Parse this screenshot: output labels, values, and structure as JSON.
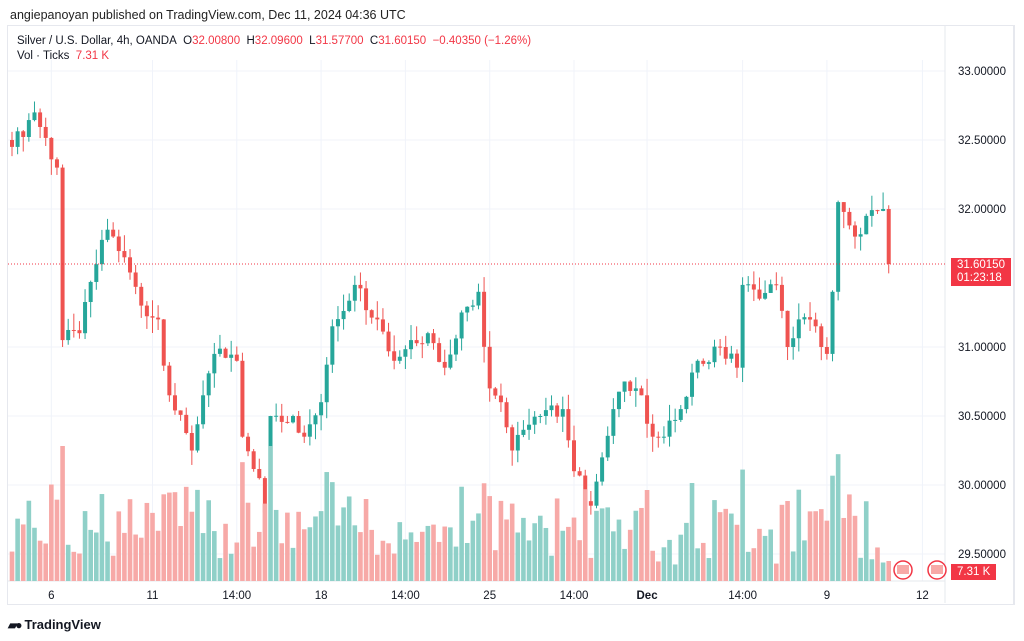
{
  "publisher": "angiepanoyan published on TradingView.com, Dec 11, 2024 04:36 UTC",
  "legend": {
    "symbol": "Silver / U.S. Dollar, 4h, OANDA",
    "o_label": "O",
    "o": "32.00800",
    "h_label": "H",
    "h": "32.09600",
    "l_label": "L",
    "l": "31.57700",
    "c_label": "C",
    "c": "31.60150",
    "change": "−0.40350 (−1.26%)",
    "vol_label": "Vol · Ticks",
    "vol": "7.31 K"
  },
  "price_tag": {
    "price": "31.60150",
    "countdown": "01:23:18"
  },
  "vol_tag": "7.31 K",
  "footer": "TradingView",
  "colors": {
    "up": "#26a69a",
    "down": "#ef5350",
    "vol_up": "#8fd0c8",
    "vol_down": "#f7a9a7"
  },
  "chart_data": {
    "type": "candlestick",
    "title": "Silver / U.S. Dollar, 4h, OANDA",
    "ylim": [
      29.4,
      33.1
    ],
    "y_ticks": [
      "33.00000",
      "32.50000",
      "32.00000",
      "31.00000",
      "30.50000",
      "30.00000",
      "29.50000"
    ],
    "y_tick_values": [
      33.0,
      32.5,
      32.0,
      31.0,
      30.5,
      30.0,
      29.5
    ],
    "x_ticks": [
      {
        "label": "6",
        "index": 7
      },
      {
        "label": "11",
        "index": 25
      },
      {
        "label": "14:00",
        "index": 40
      },
      {
        "label": "18",
        "index": 55
      },
      {
        "label": "14:00",
        "index": 70
      },
      {
        "label": "25",
        "index": 85
      },
      {
        "label": "14:00",
        "index": 100
      },
      {
        "label": "Dec",
        "index": 113
      },
      {
        "label": "14:00",
        "index": 130
      },
      {
        "label": "9",
        "index": 145
      },
      {
        "label": "12",
        "index": 162
      }
    ],
    "candle_count": 157,
    "close_keypoints": [
      [
        0,
        32.45
      ],
      [
        4,
        32.7
      ],
      [
        8,
        32.3
      ],
      [
        9,
        31.05
      ],
      [
        12,
        31.1
      ],
      [
        15,
        31.6
      ],
      [
        17,
        31.85
      ],
      [
        20,
        31.65
      ],
      [
        23,
        31.3
      ],
      [
        26,
        31.2
      ],
      [
        28,
        30.65
      ],
      [
        32,
        30.25
      ],
      [
        34,
        30.65
      ],
      [
        36,
        30.95
      ],
      [
        40,
        30.9
      ],
      [
        41,
        30.35
      ],
      [
        44,
        30.05
      ],
      [
        45,
        29.8
      ],
      [
        46,
        30.5
      ],
      [
        50,
        30.5
      ],
      [
        52,
        30.35
      ],
      [
        55,
        30.6
      ],
      [
        57,
        31.15
      ],
      [
        61,
        31.45
      ],
      [
        65,
        31.2
      ],
      [
        68,
        30.9
      ],
      [
        71,
        31.05
      ],
      [
        74,
        31.1
      ],
      [
        77,
        30.85
      ],
      [
        80,
        31.25
      ],
      [
        83,
        31.4
      ],
      [
        85,
        30.7
      ],
      [
        87,
        30.6
      ],
      [
        89,
        30.25
      ],
      [
        91,
        30.4
      ],
      [
        94,
        30.5
      ],
      [
        98,
        30.55
      ],
      [
        100,
        30.1
      ],
      [
        103,
        29.85
      ],
      [
        105,
        30.2
      ],
      [
        107,
        30.55
      ],
      [
        109,
        30.75
      ],
      [
        112,
        30.65
      ],
      [
        114,
        30.35
      ],
      [
        116,
        30.35
      ],
      [
        119,
        30.55
      ],
      [
        122,
        30.9
      ],
      [
        126,
        31.0
      ],
      [
        129,
        30.85
      ],
      [
        130,
        31.45
      ],
      [
        133,
        31.35
      ],
      [
        136,
        31.45
      ],
      [
        138,
        31.0
      ],
      [
        140,
        31.2
      ],
      [
        143,
        31.15
      ],
      [
        145,
        30.95
      ],
      [
        146,
        31.4
      ],
      [
        147,
        32.05
      ],
      [
        150,
        31.8
      ],
      [
        152,
        31.95
      ],
      [
        155,
        32.0
      ],
      [
        156,
        31.6015
      ]
    ],
    "last_volume": "7.31 K"
  }
}
